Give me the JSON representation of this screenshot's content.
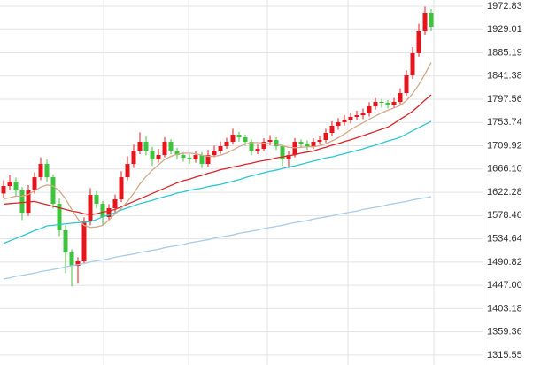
{
  "chart_data": {
    "type": "candlestick",
    "categories": [
      null,
      null,
      null,
      null,
      null,
      null,
      null,
      null,
      null,
      null,
      null,
      null,
      null,
      null,
      null,
      null,
      null,
      null,
      null,
      null,
      null,
      null,
      null,
      null,
      null,
      null,
      null,
      null,
      null,
      null,
      null,
      null,
      null,
      null,
      null,
      null,
      null,
      null,
      null,
      null,
      null,
      null,
      null,
      null,
      null,
      null,
      null,
      null,
      null,
      null,
      null,
      null,
      null,
      null,
      null,
      null,
      null,
      null,
      null,
      null,
      null,
      null,
      null,
      null,
      null,
      null,
      null,
      null,
      null,
      null
    ],
    "open": [
      1620.0,
      1634.0,
      1642.4,
      1625.7,
      1583.9,
      1625.7,
      1650.7,
      1675.7,
      1650.7,
      1600.6,
      1550.6,
      1508.8,
      1483.8,
      1492.2,
      1567.3,
      1617.3,
      1600.6,
      1575.6,
      1592.3,
      1609.0,
      1650.7,
      1675.7,
      1700.8,
      1717.5,
      1700.8,
      1684.1,
      1692.4,
      1717.5,
      1700.8,
      1692.4,
      1687.4,
      1684.1,
      1692.4,
      1675.7,
      1692.4,
      1700.8,
      1709.1,
      1717.5,
      1730.8,
      1725.8,
      1717.5,
      1700.8,
      1704.1,
      1717.5,
      1720.8,
      1709.1,
      1684.1,
      1692.4,
      1717.5,
      1714.1,
      1709.1,
      1717.5,
      1720.8,
      1734.2,
      1747.5,
      1754.2,
      1759.2,
      1764.2,
      1767.5,
      1770.9,
      1784.2,
      1792.6,
      1790.9,
      1787.5,
      1792.6,
      1809.3,
      1842.6,
      1884.4,
      1926.1,
      1959.5
    ],
    "high": [
      1645,
      1655,
      1650,
      1632,
      1636,
      1660,
      1688,
      1684,
      1656,
      1610,
      1560,
      1515,
      1500,
      1575,
      1630,
      1625,
      1606,
      1600,
      1618,
      1662,
      1690,
      1712,
      1735,
      1728,
      1708,
      1704,
      1726,
      1722,
      1706,
      1698,
      1694,
      1700,
      1698,
      1702,
      1710,
      1718,
      1725,
      1742,
      1736,
      1731,
      1722,
      1712,
      1724,
      1730,
      1726,
      1714,
      1700,
      1724,
      1722,
      1720,
      1724,
      1728,
      1742,
      1756,
      1762,
      1768,
      1772,
      1776,
      1780,
      1792,
      1800,
      1798,
      1796,
      1800,
      1818,
      1852,
      1896,
      1940,
      1972,
      1968
    ],
    "low": [
      1612,
      1626,
      1615,
      1570,
      1578,
      1620,
      1645,
      1642,
      1592,
      1540,
      1470,
      1445,
      1450,
      1488,
      1560,
      1592,
      1560,
      1568,
      1585,
      1604,
      1645,
      1668,
      1694,
      1692,
      1672,
      1678,
      1688,
      1694,
      1684,
      1680,
      1676,
      1678,
      1668,
      1670,
      1688,
      1695,
      1704,
      1712,
      1718,
      1710,
      1692,
      1694,
      1700,
      1711,
      1702,
      1672,
      1668,
      1688,
      1706,
      1702,
      1704,
      1712,
      1716,
      1728,
      1740,
      1748,
      1752,
      1758,
      1760,
      1765,
      1778,
      1782,
      1780,
      1782,
      1788,
      1804,
      1836,
      1878,
      1918,
      1926
    ],
    "close": [
      1634.0,
      1642.4,
      1625.7,
      1583.9,
      1625.7,
      1650.7,
      1675.7,
      1650.7,
      1600.6,
      1550.6,
      1508.8,
      1483.8,
      1492.2,
      1567.3,
      1617.3,
      1600.6,
      1575.6,
      1592.3,
      1609.0,
      1650.7,
      1675.7,
      1700.8,
      1717.5,
      1700.8,
      1684.1,
      1692.4,
      1717.5,
      1700.8,
      1692.4,
      1687.4,
      1684.1,
      1692.4,
      1675.7,
      1692.4,
      1700.8,
      1709.1,
      1717.5,
      1730.8,
      1725.8,
      1717.5,
      1700.8,
      1704.1,
      1717.5,
      1720.8,
      1709.1,
      1684.1,
      1692.4,
      1717.5,
      1714.1,
      1709.1,
      1717.5,
      1720.8,
      1734.2,
      1747.5,
      1754.2,
      1759.2,
      1764.2,
      1767.5,
      1770.9,
      1784.2,
      1792.6,
      1790.9,
      1787.5,
      1792.6,
      1809.3,
      1842.6,
      1884.4,
      1926.1,
      1959.5,
      1934.4
    ],
    "up_color": "#e8141b",
    "down_color": "#3cc43c",
    "series": [
      {
        "color": "#a9cce8",
        "values": [
          1459,
          1461,
          1464,
          1466,
          1468,
          1470,
          1473,
          1475,
          1477,
          1479,
          1482,
          1484,
          1486,
          1488,
          1491,
          1493,
          1495,
          1497,
          1500,
          1502,
          1504,
          1506,
          1509,
          1511,
          1513,
          1515,
          1518,
          1520,
          1522,
          1524,
          1527,
          1529,
          1531,
          1533,
          1536,
          1538,
          1540,
          1542,
          1545,
          1547,
          1549,
          1551,
          1554,
          1556,
          1558,
          1560,
          1563,
          1565,
          1567,
          1569,
          1572,
          1574,
          1576,
          1578,
          1581,
          1583,
          1585,
          1587,
          1590,
          1592,
          1594,
          1596,
          1599,
          1601,
          1603,
          1605,
          1608,
          1610,
          1612,
          1614
        ]
      },
      {
        "color": "#2ec8d0",
        "values": [
          1526,
          1530.7,
          1535.5,
          1540,
          1545,
          1550,
          1554,
          1559,
          1560,
          1561.5,
          1563,
          1564,
          1565,
          1566,
          1567,
          1571,
          1576,
          1580,
          1584,
          1589,
          1593,
          1597,
          1601,
          1604,
          1607,
          1611,
          1614,
          1617,
          1621,
          1623,
          1626,
          1628,
          1630,
          1633,
          1635,
          1637,
          1640,
          1643,
          1646,
          1650,
          1653,
          1656,
          1659,
          1662,
          1664,
          1667,
          1670,
          1672,
          1675,
          1678,
          1681,
          1684,
          1687,
          1689,
          1692,
          1695,
          1698,
          1701,
          1704,
          1708,
          1711,
          1715,
          1719,
          1722,
          1726,
          1732,
          1738,
          1744,
          1750,
          1756
        ]
      },
      {
        "color": "#d8262a",
        "values": [
          1600,
          1601,
          1602,
          1603,
          1604,
          1605,
          1602,
          1599,
          1596,
          1593,
          1590,
          1587,
          1585,
          1582,
          1580,
          1582,
          1585,
          1587,
          1590,
          1595,
          1600,
          1605,
          1610,
          1615,
          1620,
          1625,
          1630,
          1635,
          1640,
          1644,
          1647,
          1651,
          1654,
          1658,
          1661,
          1665,
          1667,
          1670,
          1672,
          1675,
          1677,
          1680,
          1682,
          1684,
          1687,
          1689,
          1691,
          1693,
          1696,
          1698,
          1700,
          1704,
          1707,
          1711,
          1714,
          1718,
          1721,
          1725,
          1729,
          1733,
          1737,
          1741,
          1745,
          1752,
          1760,
          1767,
          1775,
          1785,
          1796,
          1806
        ]
      },
      {
        "color": "#d2a98a",
        "values": [
          1610,
          1612,
          1615,
          1615,
          1618,
          1625,
          1632,
          1636,
          1634,
          1625,
          1610,
          1590,
          1572,
          1560,
          1556,
          1557,
          1560,
          1570,
          1582,
          1592,
          1605,
          1620,
          1638,
          1652,
          1664,
          1674,
          1684,
          1690,
          1694,
          1696,
          1696,
          1695,
          1692,
          1690,
          1690,
          1692,
          1696,
          1702,
          1708,
          1713,
          1716,
          1716,
          1715,
          1714,
          1713,
          1710,
          1707,
          1706,
          1707,
          1708,
          1708,
          1710,
          1714,
          1719,
          1725,
          1732,
          1740,
          1747,
          1753,
          1760,
          1766,
          1772,
          1777,
          1781,
          1786,
          1795,
          1808,
          1825,
          1845,
          1867
        ]
      }
    ],
    "ylim": [
      1297,
      1984.5
    ],
    "yticks": [
      {
        "value": 1315.55,
        "label": "1315.55"
      },
      1359.36,
      1403.18,
      {
        "value": 1447,
        "label": "1447.00"
      },
      1490.82,
      1534.64,
      1578.46,
      1622.28,
      {
        "value": 1666.1,
        "label": "1666.10"
      },
      1709.92,
      1753.74,
      1797.56,
      1841.38,
      1885.19,
      1929.01,
      1972.83
    ],
    "grid": true
  }
}
